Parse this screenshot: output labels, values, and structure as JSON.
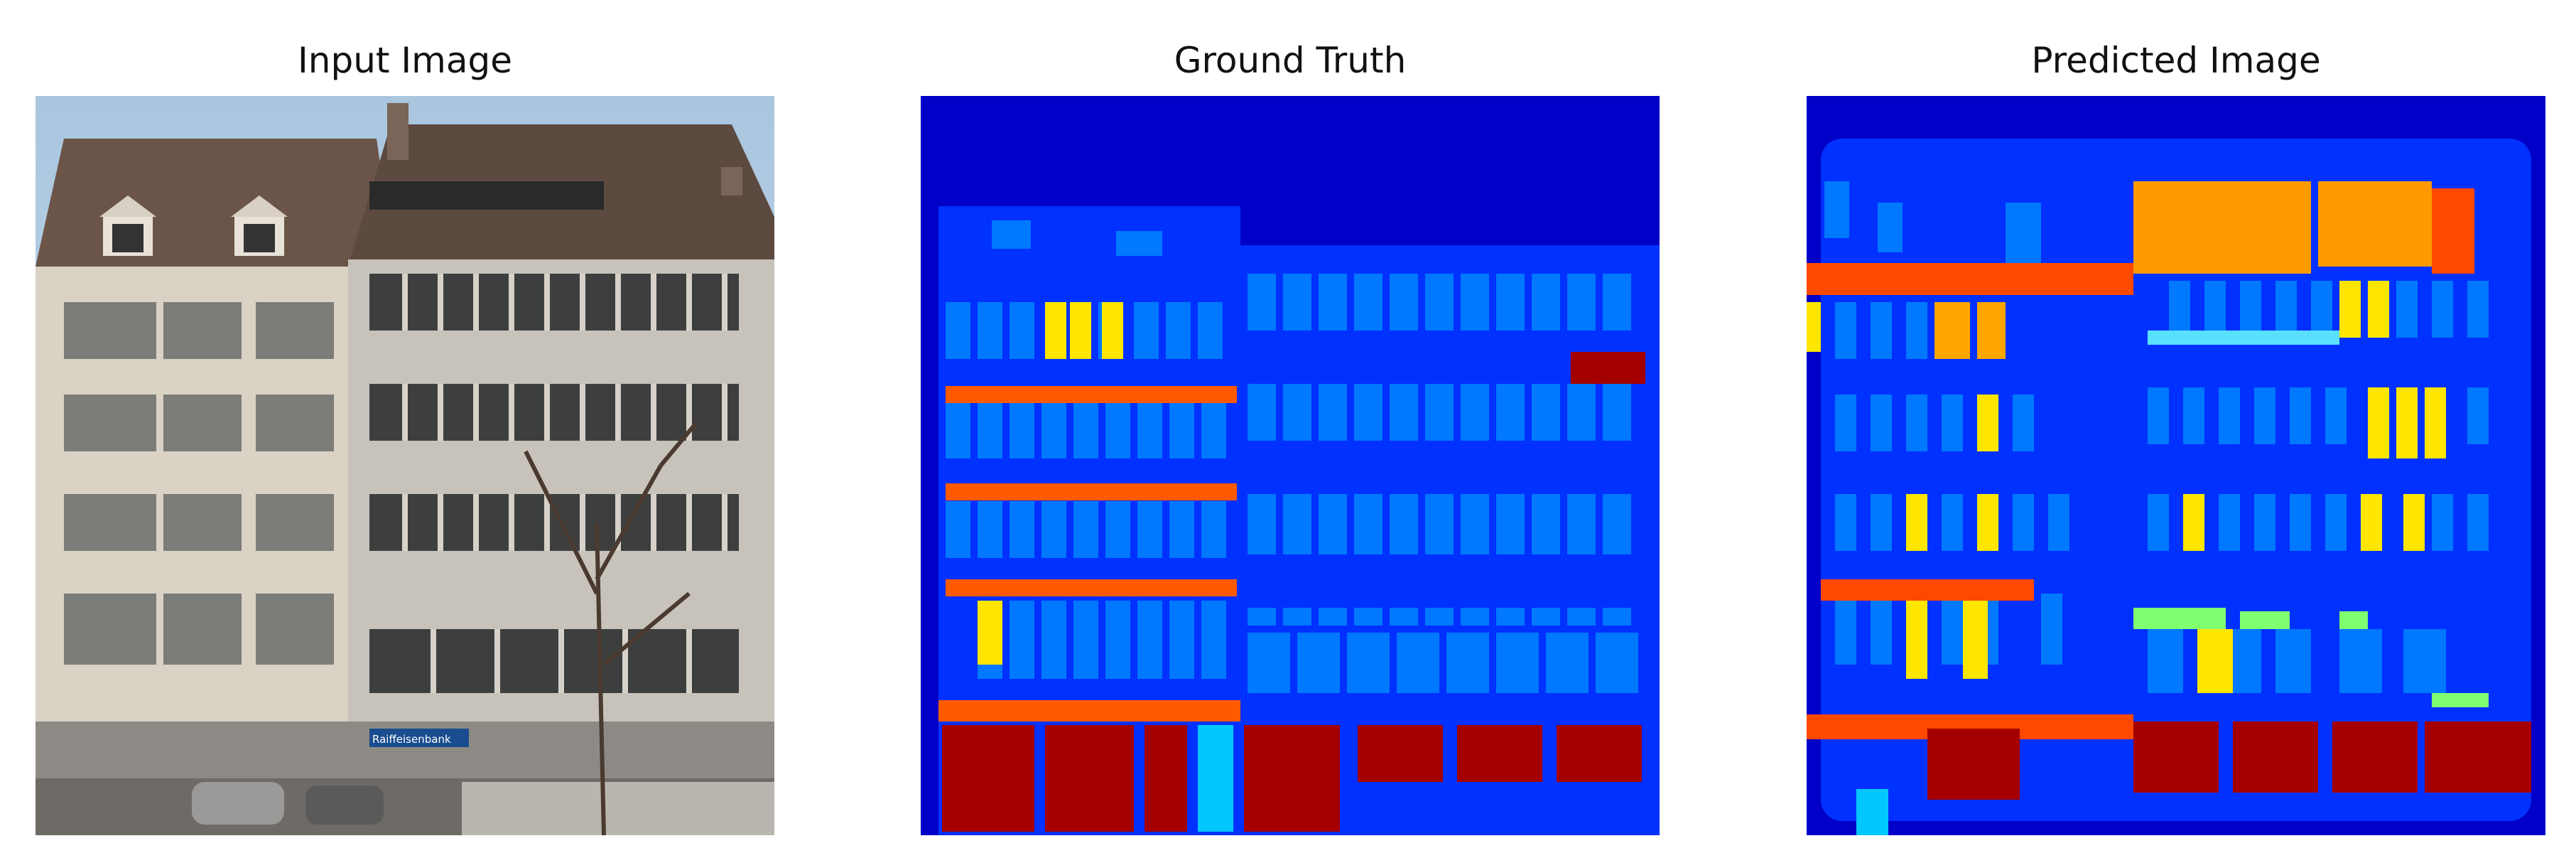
{
  "titles": {
    "input": "Input Image",
    "ground_truth": "Ground Truth",
    "predicted": "Predicted Image"
  },
  "input_image": {
    "storefront_sign": "Raiffeisenbank"
  },
  "colors": {
    "background": "#0000c8",
    "facade": "#0031ff",
    "window": "#0078ff",
    "sill": "#ff4800",
    "shop": "#a50000",
    "blind": "#ffe600",
    "door": "#00c8ff",
    "cornice": "#ff5a00"
  }
}
